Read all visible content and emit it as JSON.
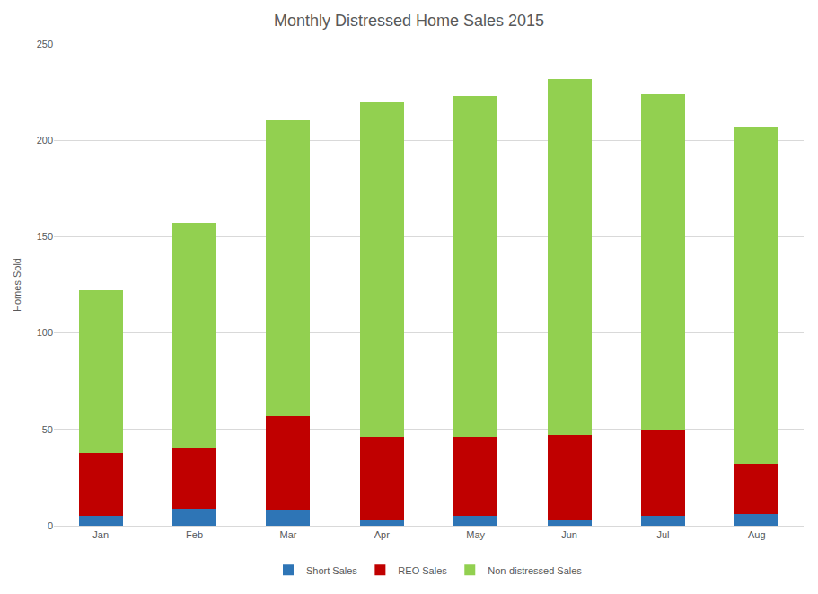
{
  "chart_data": {
    "type": "bar",
    "title": "Monthly Distressed Home Sales 2015",
    "y_label": "Homes Sold",
    "categories": [
      "Jan",
      "Feb",
      "Mar",
      "Apr",
      "May",
      "Jun",
      "Jul",
      "Aug"
    ],
    "series": [
      {
        "name": "Short Sales",
        "color": "#2e75b6",
        "values": [
          5,
          9,
          8,
          3,
          5,
          3,
          5,
          6
        ]
      },
      {
        "name": "REO Sales",
        "color": "#c00000",
        "values": [
          33,
          31,
          49,
          43,
          41,
          44,
          45,
          26
        ]
      },
      {
        "name": "Non-distressed Sales",
        "color": "#92d050",
        "values": [
          84,
          117,
          154,
          174,
          177,
          185,
          174,
          175
        ]
      }
    ],
    "stacked": true,
    "ylim": [
      0,
      250
    ],
    "yticks": [
      0,
      50,
      100,
      150,
      200,
      250
    ],
    "grid": true,
    "legend": "bottom"
  }
}
